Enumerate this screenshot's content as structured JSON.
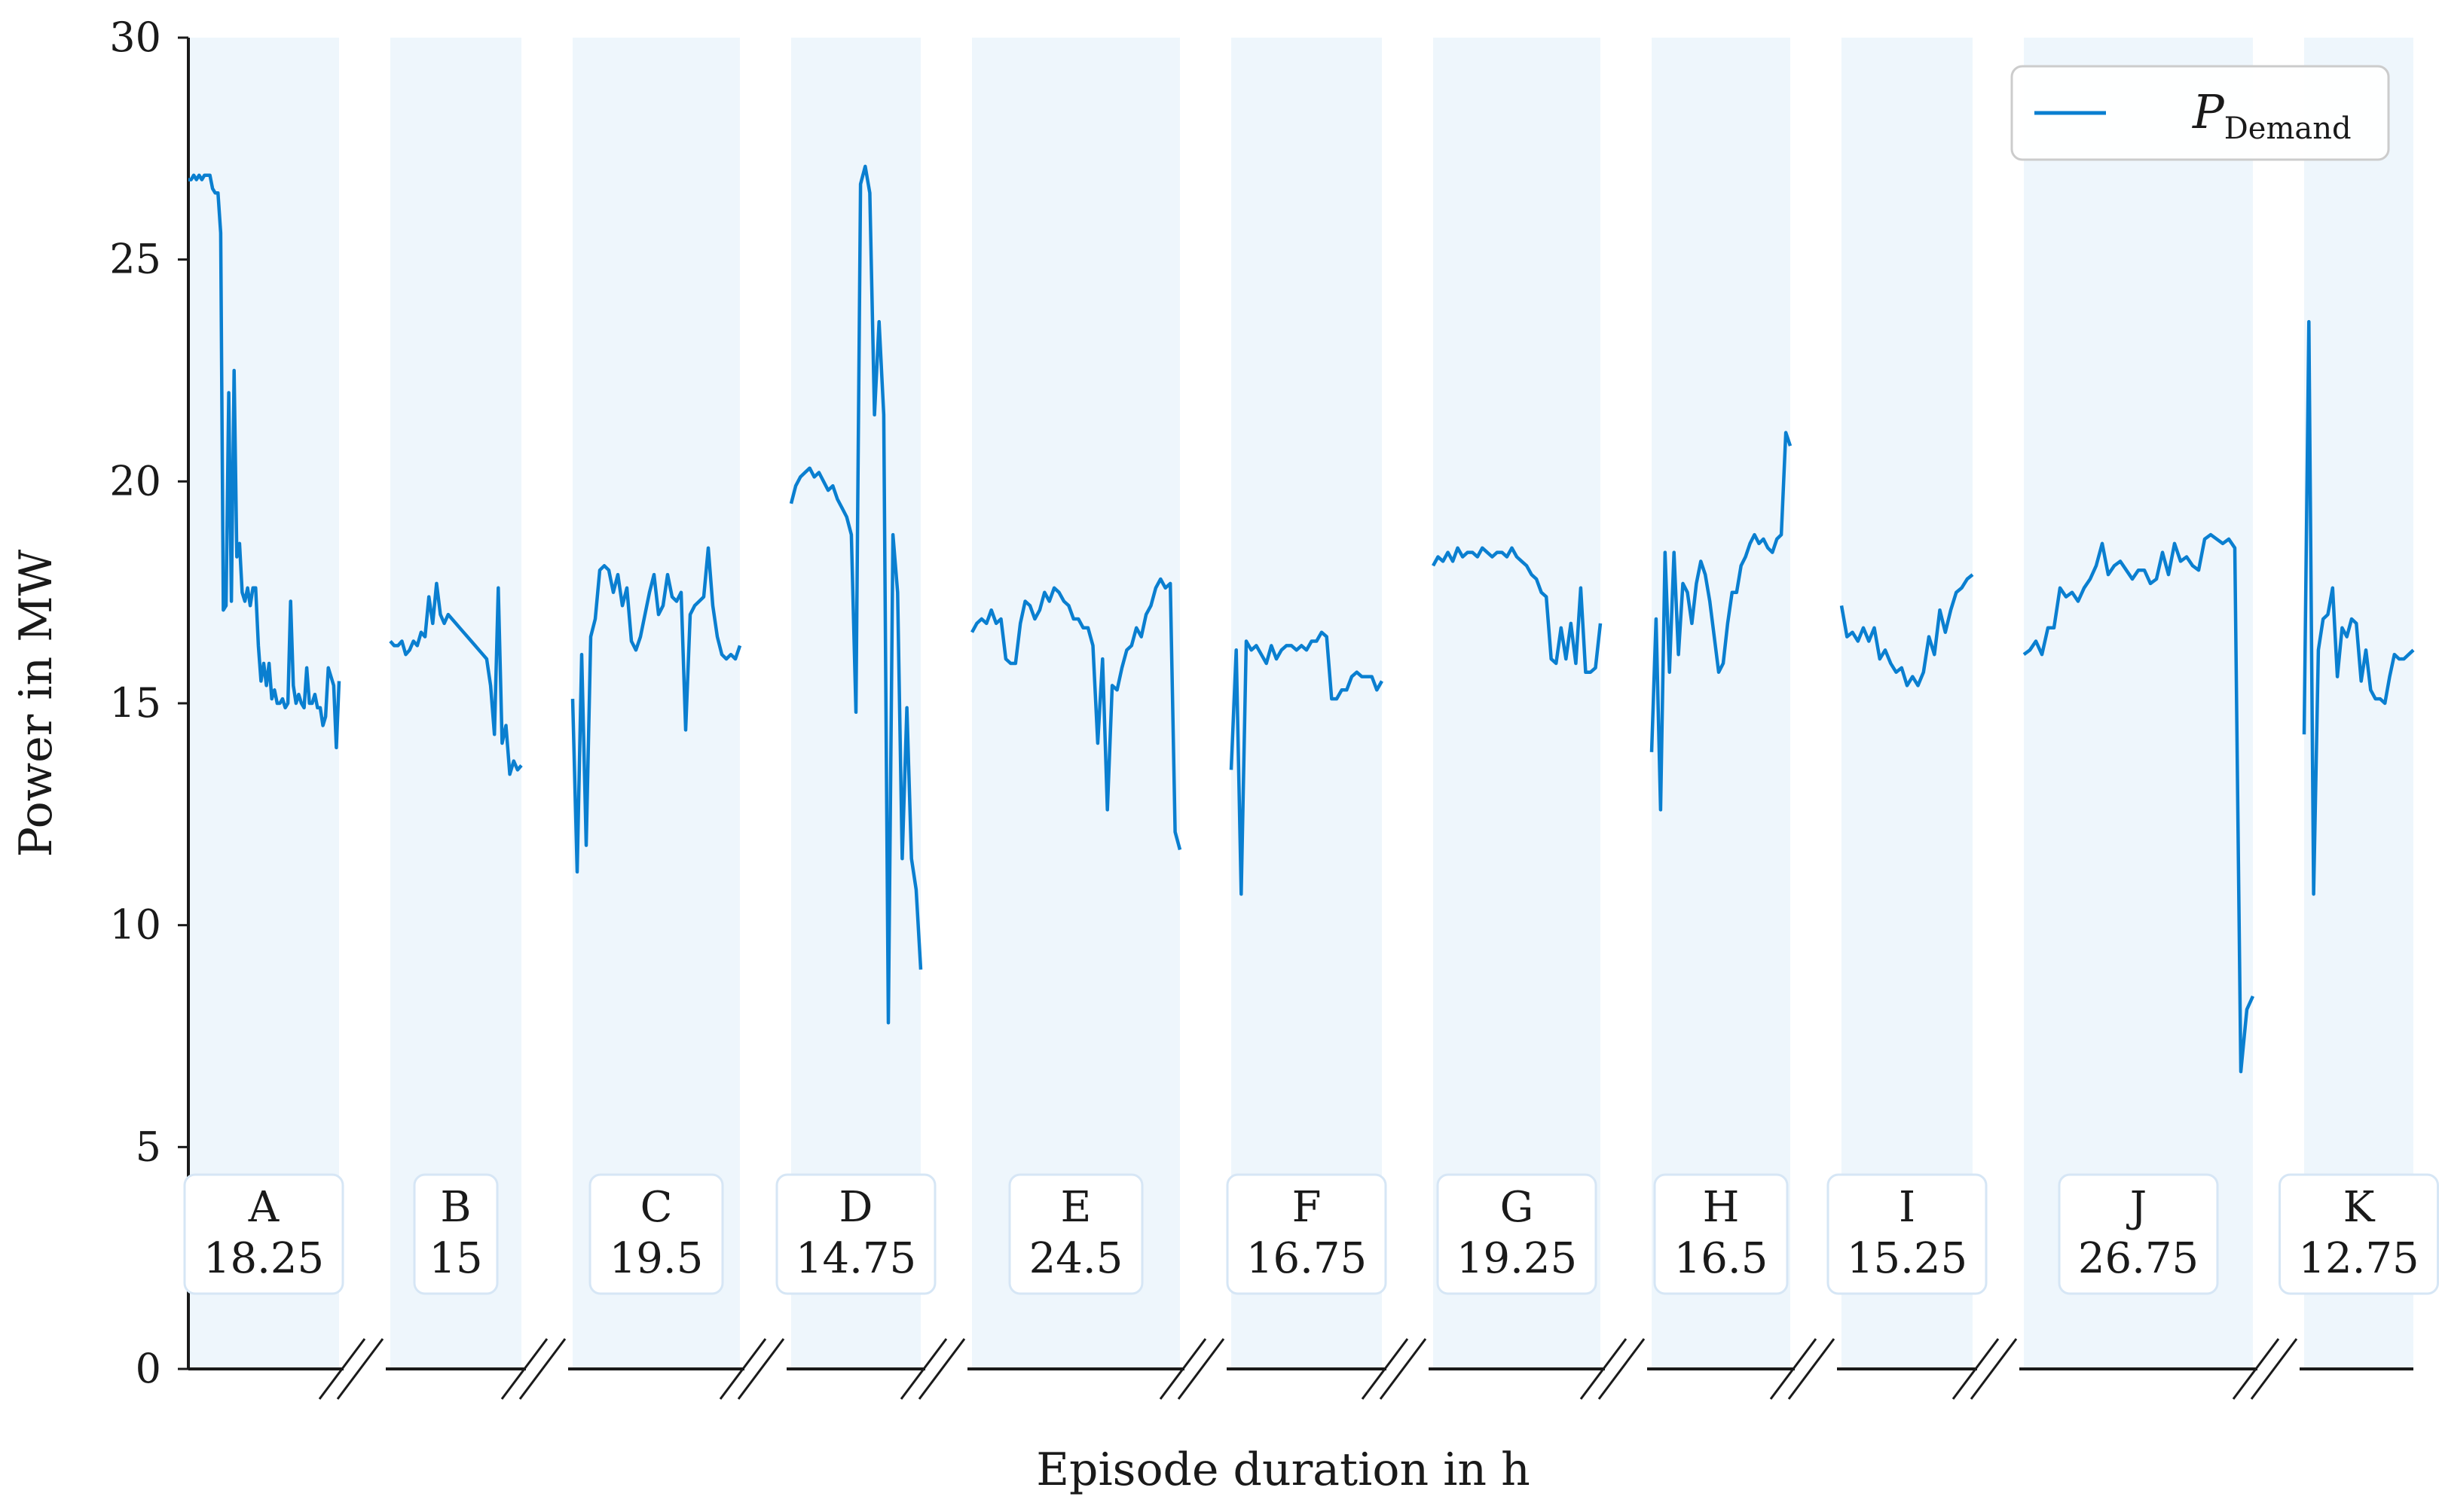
{
  "chart_data": {
    "type": "line",
    "title": "",
    "xlabel": "Episode duration in h",
    "ylabel": "Power in MW",
    "ylim": [
      0,
      30
    ],
    "yticks": [
      "0",
      "5",
      "10",
      "15",
      "20",
      "25",
      "30"
    ],
    "grid": false,
    "legend": {
      "position": "top-right",
      "series_name_main": "P",
      "series_name_sub": "Demand"
    },
    "colors": {
      "series": "#0a7fd0",
      "band": "#eef6fc",
      "axis": "#1a1a1a",
      "label_box_border": "#d6e6f5"
    },
    "series": [
      {
        "name": "P_Demand",
        "episodes": [
          {
            "name": "A",
            "duration": "18.25",
            "values": [
              26.8,
              26.8,
              26.9,
              26.8,
              26.9,
              26.8,
              26.9,
              26.9,
              26.9,
              26.6,
              26.5,
              26.5,
              25.6,
              17.1,
              17.2,
              22.0,
              17.3,
              22.5,
              18.3,
              18.6,
              17.5,
              17.3,
              17.6,
              17.2,
              17.6,
              17.6,
              16.3,
              15.5,
              15.9,
              15.4,
              15.9,
              15.1,
              15.3,
              15.0,
              15.0,
              15.1,
              14.9,
              15.0,
              17.3,
              15.4,
              15.0,
              15.2,
              15.0,
              14.9,
              15.8,
              15.0,
              15.0,
              15.2,
              14.9,
              14.9,
              14.5,
              14.7,
              15.8,
              15.6,
              15.4,
              14.0,
              15.5
            ]
          },
          {
            "name": "B",
            "duration": "15",
            "values": [
              16.4,
              16.3,
              16.3,
              16.4,
              16.1,
              16.2,
              16.4,
              16.3,
              16.6,
              16.5,
              17.4,
              16.8,
              17.7,
              17.0,
              16.8,
              17.0,
              16.9,
              16.8,
              16.7,
              16.6,
              16.5,
              16.4,
              16.3,
              16.2,
              16.1,
              16.0,
              15.4,
              14.3,
              17.6,
              14.1,
              14.5,
              13.4,
              13.7,
              13.5,
              13.6
            ]
          },
          {
            "name": "C",
            "duration": "19.5",
            "values": [
              15.1,
              11.2,
              16.1,
              11.8,
              16.5,
              16.9,
              18.0,
              18.1,
              18.0,
              17.5,
              17.9,
              17.2,
              17.6,
              16.4,
              16.2,
              16.5,
              17.0,
              17.5,
              17.9,
              17.0,
              17.2,
              17.9,
              17.4,
              17.3,
              17.5,
              14.4,
              17.0,
              17.2,
              17.3,
              17.4,
              18.5,
              17.2,
              16.5,
              16.1,
              16.0,
              16.1,
              16.0,
              16.3
            ]
          },
          {
            "name": "D",
            "duration": "14.75",
            "values": [
              19.5,
              19.9,
              20.1,
              20.2,
              20.3,
              20.1,
              20.2,
              20.0,
              19.8,
              19.9,
              19.6,
              19.4,
              19.2,
              18.8,
              14.8,
              26.7,
              27.1,
              26.5,
              21.5,
              23.6,
              21.5,
              7.8,
              18.8,
              17.5,
              11.5,
              14.9,
              11.5,
              10.8,
              9.0
            ]
          },
          {
            "name": "E",
            "duration": "24.5",
            "values": [
              16.6,
              16.8,
              16.9,
              16.8,
              17.1,
              16.8,
              16.9,
              16.0,
              15.9,
              15.9,
              16.8,
              17.3,
              17.2,
              16.9,
              17.1,
              17.5,
              17.3,
              17.6,
              17.5,
              17.3,
              17.2,
              16.9,
              16.9,
              16.7,
              16.7,
              16.3,
              14.1,
              16.0,
              12.6,
              15.4,
              15.3,
              15.8,
              16.2,
              16.3,
              16.7,
              16.5,
              17.0,
              17.2,
              17.6,
              17.8,
              17.6,
              17.7,
              12.1,
              11.7
            ]
          },
          {
            "name": "F",
            "duration": "16.75",
            "values": [
              13.5,
              16.2,
              10.7,
              16.4,
              16.2,
              16.3,
              16.1,
              15.9,
              16.3,
              16.0,
              16.2,
              16.3,
              16.3,
              16.2,
              16.3,
              16.2,
              16.4,
              16.4,
              16.6,
              16.5,
              15.1,
              15.1,
              15.3,
              15.3,
              15.6,
              15.7,
              15.6,
              15.6,
              15.6,
              15.3,
              15.5
            ]
          },
          {
            "name": "G",
            "duration": "19.25",
            "values": [
              18.1,
              18.3,
              18.2,
              18.4,
              18.2,
              18.5,
              18.3,
              18.4,
              18.4,
              18.3,
              18.5,
              18.4,
              18.3,
              18.4,
              18.4,
              18.3,
              18.5,
              18.3,
              18.2,
              18.1,
              17.9,
              17.8,
              17.5,
              17.4,
              16.0,
              15.9,
              16.7,
              16.0,
              16.8,
              15.9,
              17.6,
              15.7,
              15.7,
              15.8,
              16.8
            ]
          },
          {
            "name": "H",
            "duration": "16.5",
            "values": [
              13.9,
              16.9,
              12.6,
              18.4,
              15.7,
              18.4,
              16.1,
              17.7,
              17.5,
              16.8,
              17.7,
              18.2,
              17.9,
              17.3,
              16.5,
              15.7,
              15.9,
              16.8,
              17.5,
              17.5,
              18.1,
              18.3,
              18.6,
              18.8,
              18.6,
              18.7,
              18.5,
              18.4,
              18.7,
              18.8,
              21.1,
              20.8
            ]
          },
          {
            "name": "I",
            "duration": "15.25",
            "values": [
              17.2,
              16.5,
              16.6,
              16.4,
              16.7,
              16.4,
              16.7,
              16.0,
              16.2,
              15.9,
              15.7,
              15.8,
              15.4,
              15.6,
              15.4,
              15.7,
              16.5,
              16.1,
              17.1,
              16.6,
              17.1,
              17.5,
              17.6,
              17.8,
              17.9
            ]
          },
          {
            "name": "J",
            "duration": "26.75",
            "values": [
              16.1,
              16.2,
              16.4,
              16.1,
              16.7,
              16.7,
              17.6,
              17.4,
              17.5,
              17.3,
              17.6,
              17.8,
              18.1,
              18.6,
              17.9,
              18.1,
              18.2,
              18.0,
              17.8,
              18.0,
              18.0,
              17.7,
              17.8,
              18.4,
              17.9,
              18.6,
              18.2,
              18.3,
              18.1,
              18.0,
              18.7,
              18.8,
              18.7,
              18.6,
              18.7,
              18.5,
              6.7,
              8.1,
              8.4
            ]
          },
          {
            "name": "K",
            "duration": "12.75",
            "values": [
              14.3,
              23.6,
              10.7,
              16.2,
              16.9,
              17.0,
              17.6,
              15.6,
              16.7,
              16.5,
              16.9,
              16.8,
              15.5,
              16.2,
              15.3,
              15.1,
              15.1,
              15.0,
              15.6,
              16.1,
              16.0,
              16.0,
              16.1,
              16.2
            ]
          }
        ]
      }
    ]
  }
}
